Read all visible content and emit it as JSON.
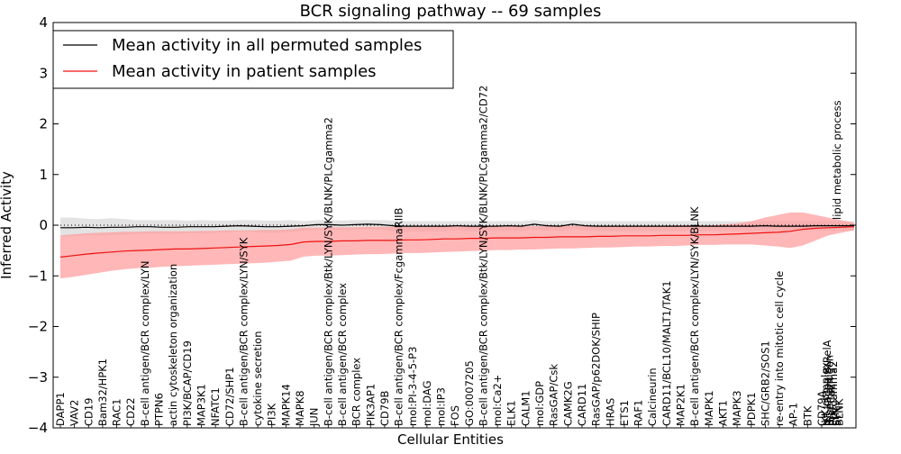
{
  "chart_data": {
    "type": "line",
    "title": "BCR signaling pathway -- 69 samples",
    "xlabel": "Cellular Entities",
    "ylabel": "Inferred Activity",
    "ylim": [
      -4,
      4
    ],
    "yticks": [
      -4,
      -3,
      -2,
      -1,
      0,
      1,
      2,
      3,
      4
    ],
    "legend": {
      "placement": "top-left",
      "entries": [
        "Mean activity in all permuted samples",
        "Mean activity in patient samples"
      ]
    },
    "colors": {
      "permuted": "#000000",
      "permuted_band": "#d9d9d9",
      "patient": "#ee1111",
      "patient_band": "#ff9999"
    },
    "labels_bottom": [
      "DAPP1",
      "VAV2",
      "CD19",
      "Bam32/HPK1",
      "RAC1",
      "CD22",
      "B-cell antigen/BCR complex/LYN",
      "PTPN6",
      "actin cytoskeleton organization",
      "PI3K/BCAP/CD19",
      "MAP3K1",
      "NFATC1",
      "CD72/SHP1",
      "B-cell antigen/BCR complex/LYN/SYK",
      "cytokine secretion",
      "PI3K",
      "MAPK14",
      "MAPK8",
      "JUN",
      "B-cell antigen/BCR complex/Btk/LYN/SYK/BLNK/PLCgamma2",
      "B-cell antigen/BCR complex",
      "BCR complex",
      "PIK3AP1",
      "CD79B",
      "B-cell antigen/BCR complex/FcgammaRIIB",
      "mol:PI-3-4-5-P3",
      "mol:DAG",
      "mol:IP3",
      "FOS",
      "GO:0007205",
      "B-cell antigen/BCR complex/Btk/LYN/SYK/BLNK/PLCgamma2/CD72",
      "mol:Ca2+",
      "ELK1",
      "CALM1",
      "mol:GDP",
      "RasGAP/Csk",
      "CAMK2G",
      "CARD11",
      "RasGAP/p62DOK/SHIP",
      "HRAS",
      "ETS1",
      "RAF1",
      "Calcineurin",
      "CARD11/BCL10/MALT1/TAK1",
      "MAP2K1",
      "B-cell antigen/BCR complex/LYN/SYK/BLNK",
      "MAPK1",
      "AKT1",
      "MAPK3",
      "PDPK1",
      "SHC/GRB2/SOS1",
      "re-entry into mitotic cell cycle",
      "AP-1",
      "BTK",
      "CD79A"
    ],
    "labels_overlap": [
      "IKK complex",
      "NF-kappa B/RelA",
      "B-cell antigen",
      "mol:Ca2+",
      "PLCgamma2",
      "LYN",
      "SYK",
      "BLNK"
    ],
    "label_top_right": "lipid metabolic process",
    "series": [
      {
        "name": "Mean activity in patient samples",
        "values": [
          -0.63,
          -0.6,
          -0.57,
          -0.55,
          -0.53,
          -0.51,
          -0.5,
          -0.49,
          -0.48,
          -0.47,
          -0.47,
          -0.46,
          -0.45,
          -0.44,
          -0.43,
          -0.42,
          -0.41,
          -0.4,
          -0.38,
          -0.33,
          -0.32,
          -0.32,
          -0.31,
          -0.31,
          -0.3,
          -0.3,
          -0.3,
          -0.29,
          -0.29,
          -0.28,
          -0.27,
          -0.27,
          -0.26,
          -0.26,
          -0.25,
          -0.25,
          -0.25,
          -0.24,
          -0.24,
          -0.23,
          -0.23,
          -0.23,
          -0.22,
          -0.22,
          -0.21,
          -0.21,
          -0.21,
          -0.2,
          -0.2,
          -0.2,
          -0.19,
          -0.19,
          -0.18,
          -0.17,
          -0.16,
          -0.15,
          -0.14,
          -0.12,
          -0.08,
          -0.06,
          -0.05,
          -0.04,
          -0.03
        ],
        "upper": [
          -0.2,
          -0.18,
          -0.16,
          -0.15,
          -0.14,
          -0.13,
          -0.13,
          -0.12,
          -0.12,
          -0.12,
          -0.12,
          -0.11,
          -0.11,
          -0.1,
          -0.1,
          -0.1,
          -0.09,
          -0.09,
          -0.08,
          -0.05,
          -0.05,
          -0.04,
          -0.04,
          -0.04,
          -0.03,
          -0.03,
          -0.03,
          -0.03,
          -0.03,
          -0.03,
          -0.02,
          -0.02,
          -0.02,
          -0.02,
          -0.02,
          -0.02,
          -0.02,
          -0.02,
          -0.01,
          -0.01,
          -0.01,
          -0.01,
          -0.01,
          -0.01,
          -0.01,
          -0.01,
          -0.01,
          -0.01,
          0.0,
          0.0,
          0.0,
          0.0,
          0.02,
          0.04,
          0.08,
          0.15,
          0.2,
          0.25,
          0.25,
          0.2,
          0.15,
          0.1,
          0.05
        ],
        "lower": [
          -1.05,
          -1.02,
          -0.98,
          -0.94,
          -0.9,
          -0.87,
          -0.85,
          -0.84,
          -0.82,
          -0.81,
          -0.8,
          -0.79,
          -0.78,
          -0.77,
          -0.76,
          -0.75,
          -0.74,
          -0.72,
          -0.7,
          -0.62,
          -0.6,
          -0.6,
          -0.59,
          -0.58,
          -0.57,
          -0.57,
          -0.56,
          -0.55,
          -0.55,
          -0.54,
          -0.53,
          -0.52,
          -0.51,
          -0.5,
          -0.49,
          -0.49,
          -0.48,
          -0.48,
          -0.47,
          -0.46,
          -0.46,
          -0.45,
          -0.44,
          -0.44,
          -0.43,
          -0.42,
          -0.42,
          -0.41,
          -0.41,
          -0.4,
          -0.39,
          -0.39,
          -0.38,
          -0.38,
          -0.38,
          -0.4,
          -0.42,
          -0.45,
          -0.4,
          -0.3,
          -0.2,
          -0.15,
          -0.1
        ]
      },
      {
        "name": "Mean activity in all permuted samples",
        "values": [
          -0.05,
          -0.05,
          -0.04,
          -0.05,
          -0.04,
          -0.04,
          -0.03,
          -0.03,
          -0.04,
          -0.04,
          -0.03,
          -0.03,
          -0.03,
          -0.02,
          -0.01,
          -0.02,
          -0.03,
          -0.03,
          -0.02,
          -0.01,
          0.01,
          0.01,
          0.0,
          0.01,
          0.02,
          0.01,
          -0.01,
          -0.02,
          -0.02,
          -0.02,
          -0.02,
          -0.01,
          -0.02,
          -0.02,
          -0.02,
          -0.01,
          -0.02,
          0.02,
          -0.01,
          -0.02,
          0.02,
          -0.01,
          -0.02,
          -0.02,
          -0.02,
          -0.02,
          -0.02,
          -0.02,
          -0.02,
          -0.02,
          -0.02,
          -0.02,
          -0.02,
          -0.02,
          -0.02,
          -0.01,
          -0.02,
          -0.02,
          -0.02,
          -0.01,
          -0.01,
          -0.01,
          -0.01
        ],
        "upper": [
          0.15,
          0.15,
          0.13,
          0.12,
          0.14,
          0.12,
          0.1,
          0.1,
          0.1,
          0.1,
          0.09,
          0.1,
          0.09,
          0.09,
          0.1,
          0.1,
          0.09,
          0.09,
          0.1,
          0.08,
          0.1,
          0.1,
          0.09,
          0.1,
          0.1,
          0.1,
          0.09,
          0.08,
          0.08,
          0.08,
          0.08,
          0.08,
          0.08,
          0.08,
          0.08,
          0.08,
          0.08,
          0.1,
          0.08,
          0.08,
          0.1,
          0.08,
          0.08,
          0.08,
          0.08,
          0.08,
          0.08,
          0.08,
          0.08,
          0.08,
          0.08,
          0.08,
          0.08,
          0.08,
          0.08,
          0.08,
          0.08,
          0.08,
          0.08,
          0.08,
          0.08,
          0.08,
          0.08
        ],
        "lower": [
          -0.22,
          -0.22,
          -0.2,
          -0.2,
          -0.19,
          -0.19,
          -0.17,
          -0.16,
          -0.17,
          -0.17,
          -0.16,
          -0.16,
          -0.15,
          -0.14,
          -0.12,
          -0.13,
          -0.15,
          -0.15,
          -0.13,
          -0.11,
          -0.09,
          -0.09,
          -0.1,
          -0.09,
          -0.08,
          -0.09,
          -0.12,
          -0.13,
          -0.13,
          -0.13,
          -0.12,
          -0.11,
          -0.12,
          -0.12,
          -0.12,
          -0.11,
          -0.12,
          -0.08,
          -0.11,
          -0.12,
          -0.08,
          -0.11,
          -0.12,
          -0.12,
          -0.12,
          -0.12,
          -0.12,
          -0.12,
          -0.12,
          -0.12,
          -0.12,
          -0.12,
          -0.12,
          -0.12,
          -0.12,
          -0.11,
          -0.12,
          -0.12,
          -0.12,
          -0.11,
          -0.11,
          -0.11,
          -0.11
        ]
      }
    ]
  }
}
